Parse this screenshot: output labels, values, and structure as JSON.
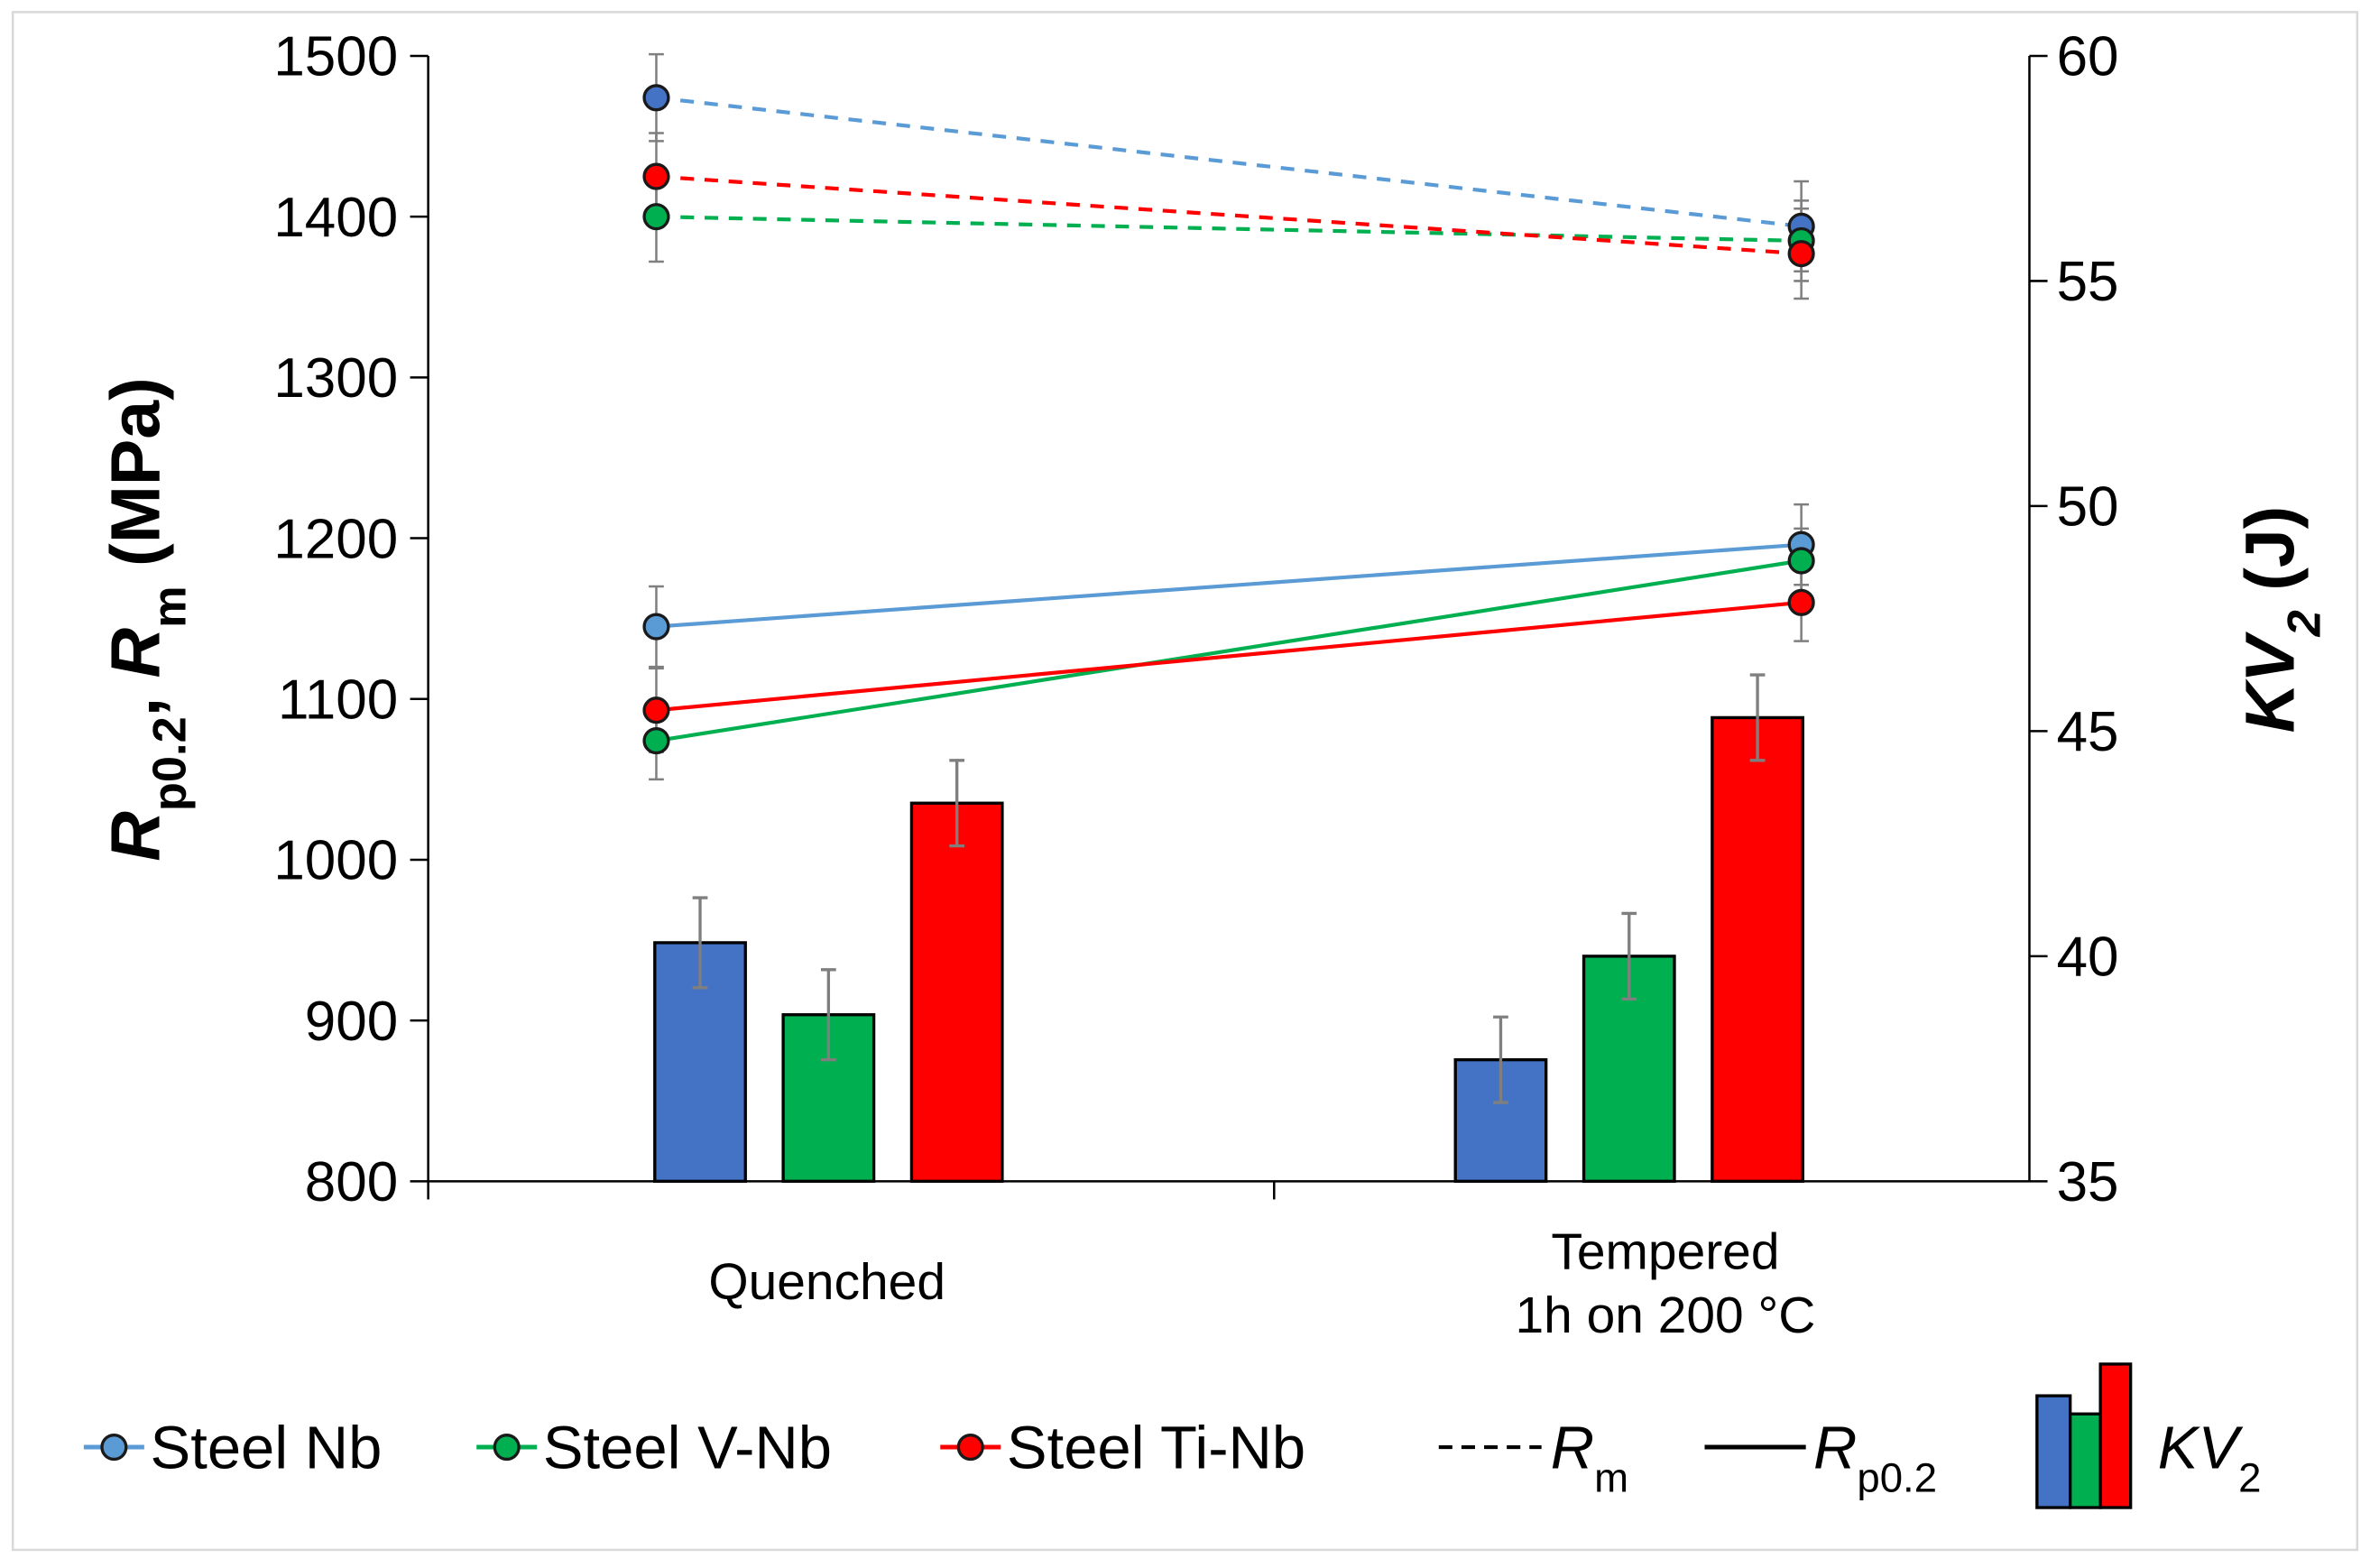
{
  "chart_data": {
    "type": "bar+line",
    "categories": [
      "Quenched",
      "Tempered 1h on 200 °C"
    ],
    "category_lines": [
      [
        "Quenched"
      ],
      [
        "Tempered",
        "1h on 200 °C"
      ]
    ],
    "y_left": {
      "label_parts": [
        "R",
        "p0.2",
        ", ",
        "R",
        "m",
        " (MPa)"
      ],
      "range": [
        800,
        1500
      ],
      "ticks": [
        800,
        900,
        1000,
        1100,
        1200,
        1300,
        1400,
        1500
      ]
    },
    "y_right": {
      "label_parts": [
        "KV",
        "2",
        " (J)"
      ],
      "range": [
        35,
        60
      ],
      "ticks": [
        35,
        40,
        45,
        50,
        55,
        60
      ]
    },
    "series": [
      {
        "name": "Steel Nb",
        "color": "#4472C4",
        "line_color": "#5B9BD5",
        "Rm": [
          1474,
          1394
        ],
        "Rm_err": [
          27,
          28
        ],
        "Rp02": [
          1145,
          1196
        ],
        "Rp02_err": [
          25,
          25
        ],
        "KV2": [
          40.3,
          37.7
        ],
        "KV2_err": [
          1.0,
          0.95
        ]
      },
      {
        "name": "Steel V-Nb",
        "color": "#00B050",
        "line_color": "#00B050",
        "Rm": [
          1400,
          1385
        ],
        "Rm_err": [
          28,
          25
        ],
        "Rp02": [
          1074,
          1186
        ],
        "Rp02_err": [
          24,
          20
        ],
        "KV2": [
          38.7,
          40.0
        ],
        "KV2_err": [
          1.0,
          0.95
        ]
      },
      {
        "name": "Steel Ti-Nb",
        "color": "#FF0000",
        "line_color": "#FF0000",
        "Rm": [
          1425,
          1377
        ],
        "Rm_err": [
          27,
          28
        ],
        "Rp02": [
          1093,
          1160
        ],
        "Rp02_err": [
          26,
          24
        ],
        "KV2": [
          43.4,
          45.3
        ],
        "KV2_err": [
          0.95,
          0.95
        ]
      }
    ],
    "legend": {
      "position": "bottom",
      "items": [
        "Steel Nb",
        "Steel V-Nb",
        "Steel Ti-Nb"
      ],
      "rm_parts": [
        "R",
        "m"
      ],
      "rp_parts": [
        "R",
        "p0.2"
      ],
      "kv_parts": [
        "KV",
        "2"
      ]
    },
    "grid": false
  }
}
